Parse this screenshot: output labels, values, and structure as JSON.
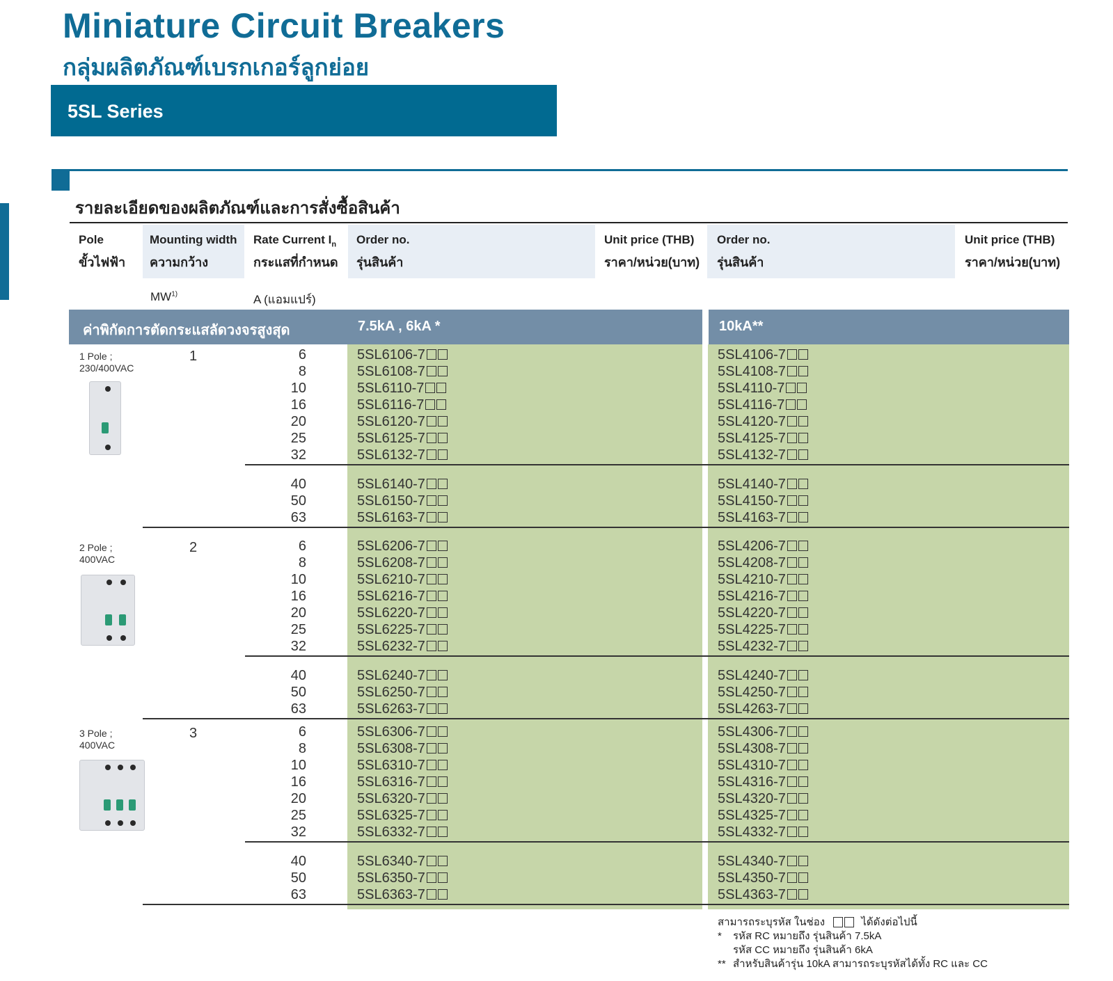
{
  "page": {
    "title": "Miniature Circuit Breakers",
    "subtitle": "กลุ่มผลิตภัณฑ์เบรกเกอร์ลูกย่อย",
    "series": "5SL Series",
    "section_title": "รายละเอียดของผลิตภัณฑ์และการสั่งซื้อสินค้า"
  },
  "table_header": {
    "pole": "Pole",
    "pole_th": "ขั้วไฟฟ้า",
    "mounting_width": "Mounting width",
    "mounting_width_th": "ความกว้าง",
    "mounting_width_unit": "MW",
    "mounting_width_unit_sup": "1)",
    "rate_current": "Rate Current I",
    "rate_current_sub": "n",
    "rate_current_th": "กระแสที่กำหนด",
    "rate_current_unit": "A (แอมแปร์)",
    "order_no": "Order no.",
    "order_no_th": "รุ่นสินค้า",
    "unit_price": "Unit price (THB)",
    "unit_price_th": "ราคา/หน่วย(บาท)"
  },
  "band": {
    "label": "ค่าพิกัดการตัดกระแสลัดวงจรสูงสุด",
    "col1": "7.5kA , 6kA *",
    "col2": "10kA**"
  },
  "rows": [
    {
      "pole": "1 Pole ;",
      "voltage": "230/400VAC",
      "mw": "1",
      "groups": [
        {
          "currents": [
            "6",
            "8",
            "10",
            "16",
            "20",
            "25",
            "32"
          ],
          "order_a": [
            "5SL6106-7",
            "5SL6108-7",
            "5SL6110-7",
            "5SL6116-7",
            "5SL6120-7",
            "5SL6125-7",
            "5SL6132-7"
          ],
          "order_b": [
            "5SL4106-7",
            "5SL4108-7",
            "5SL4110-7",
            "5SL4116-7",
            "5SL4120-7",
            "5SL4125-7",
            "5SL4132-7"
          ]
        },
        {
          "currents": [
            "40",
            "50",
            "63"
          ],
          "order_a": [
            "5SL6140-7",
            "5SL6150-7",
            "5SL6163-7"
          ],
          "order_b": [
            "5SL4140-7",
            "5SL4150-7",
            "5SL4163-7"
          ]
        }
      ]
    },
    {
      "pole": "2 Pole ;",
      "voltage": "400VAC",
      "mw": "2",
      "groups": [
        {
          "currents": [
            "6",
            "8",
            "10",
            "16",
            "20",
            "25",
            "32"
          ],
          "order_a": [
            "5SL6206-7",
            "5SL6208-7",
            "5SL6210-7",
            "5SL6216-7",
            "5SL6220-7",
            "5SL6225-7",
            "5SL6232-7"
          ],
          "order_b": [
            "5SL4206-7",
            "5SL4208-7",
            "5SL4210-7",
            "5SL4216-7",
            "5SL4220-7",
            "5SL4225-7",
            "5SL4232-7"
          ]
        },
        {
          "currents": [
            "40",
            "50",
            "63"
          ],
          "order_a": [
            "5SL6240-7",
            "5SL6250-7",
            "5SL6263-7"
          ],
          "order_b": [
            "5SL4240-7",
            "5SL4250-7",
            "5SL4263-7"
          ]
        }
      ]
    },
    {
      "pole": "3 Pole ;",
      "voltage": "400VAC",
      "mw": "3",
      "groups": [
        {
          "currents": [
            "6",
            "8",
            "10",
            "16",
            "20",
            "25",
            "32"
          ],
          "order_a": [
            "5SL6306-7",
            "5SL6308-7",
            "5SL6310-7",
            "5SL6316-7",
            "5SL6320-7",
            "5SL6325-7",
            "5SL6332-7"
          ],
          "order_b": [
            "5SL4306-7",
            "5SL4308-7",
            "5SL4310-7",
            "5SL4316-7",
            "5SL4320-7",
            "5SL4325-7",
            "5SL4332-7"
          ]
        },
        {
          "currents": [
            "40",
            "50",
            "63"
          ],
          "order_a": [
            "5SL6340-7",
            "5SL6350-7",
            "5SL6363-7"
          ],
          "order_b": [
            "5SL4340-7",
            "5SL4350-7",
            "5SL4363-7"
          ]
        }
      ]
    }
  ],
  "notes": {
    "line1_a": "สามารถระบุรหัส ในช่อง",
    "line1_b": "ได้ดังต่อไปนี้",
    "line2_mark": "*",
    "line2": "รหัส RC หมายถึง รุ่นสินค้า 7.5kA",
    "line3": "รหัส CC หมายถึง รุ่นสินค้า 6kA",
    "line4_mark": "**",
    "line4": "สำหรับสินค้ารุ่น 10kA สามารถระบุรหัสได้ทั้ง RC และ CC"
  },
  "colors": {
    "brand": "#106c96",
    "banner": "#016a91",
    "band": "#738ea7",
    "green": "#c6d6a9",
    "header_shade": "#e8eef5"
  },
  "icons": [
    "mcb-1pole-image",
    "mcb-2pole-image",
    "mcb-3pole-image",
    "empty-code-box"
  ]
}
